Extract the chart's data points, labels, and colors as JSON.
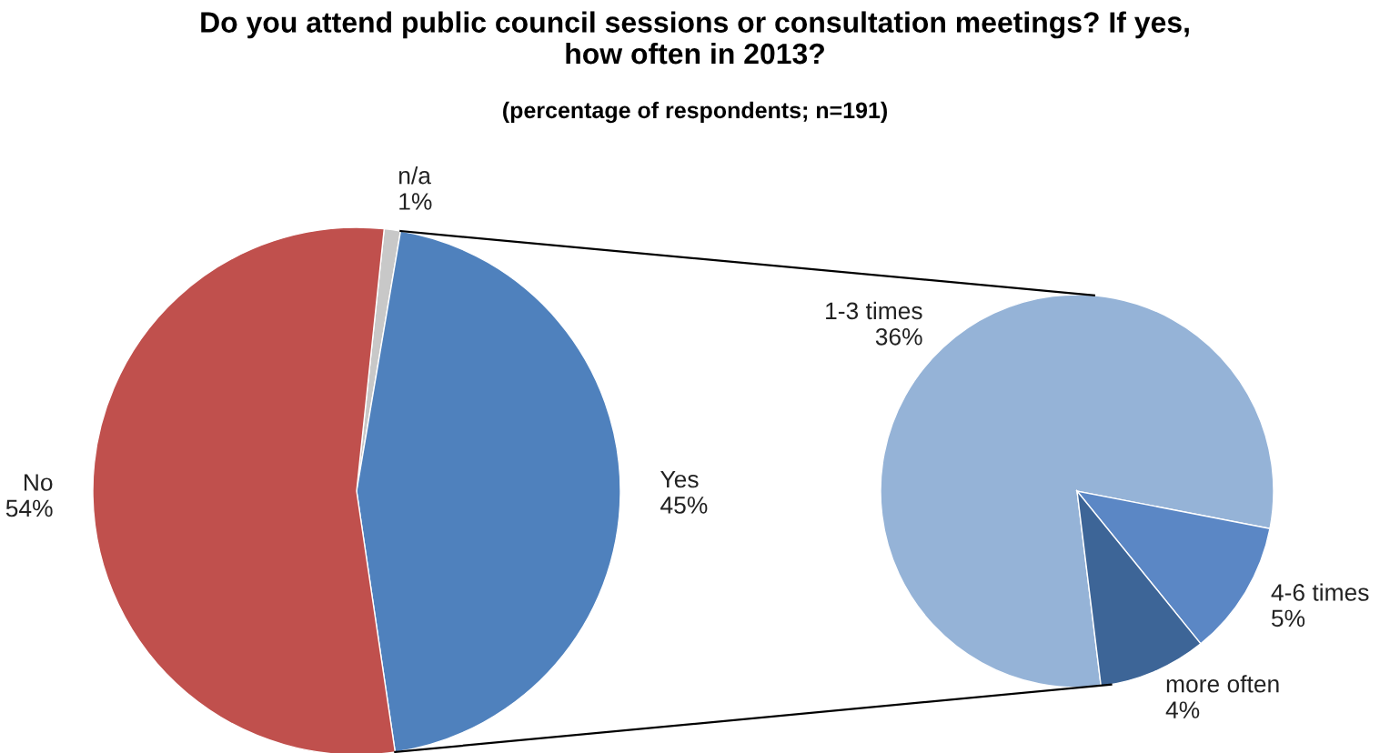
{
  "chart_data": [
    {
      "type": "pie",
      "title": "Do you attend public council sessions or consultation meetings? If yes,\nhow often in 2013?",
      "subtitle": "(percentage of respondents; n=191)",
      "categories": [
        "n/a",
        "Yes",
        "No"
      ],
      "values": [
        1,
        45,
        54
      ],
      "colors": [
        "#c8c8c8",
        "#4f81bd",
        "#c0504d"
      ],
      "value_labels": [
        "1%",
        "45%",
        "54%"
      ]
    },
    {
      "type": "pie",
      "categories": [
        "1-3 times",
        "4-6 times",
        "more often"
      ],
      "values": [
        36,
        5,
        4
      ],
      "colors": [
        "#95b3d7",
        "#5b87c5",
        "#3d6597"
      ],
      "value_labels": [
        "36%",
        "5%",
        "4%"
      ]
    }
  ]
}
